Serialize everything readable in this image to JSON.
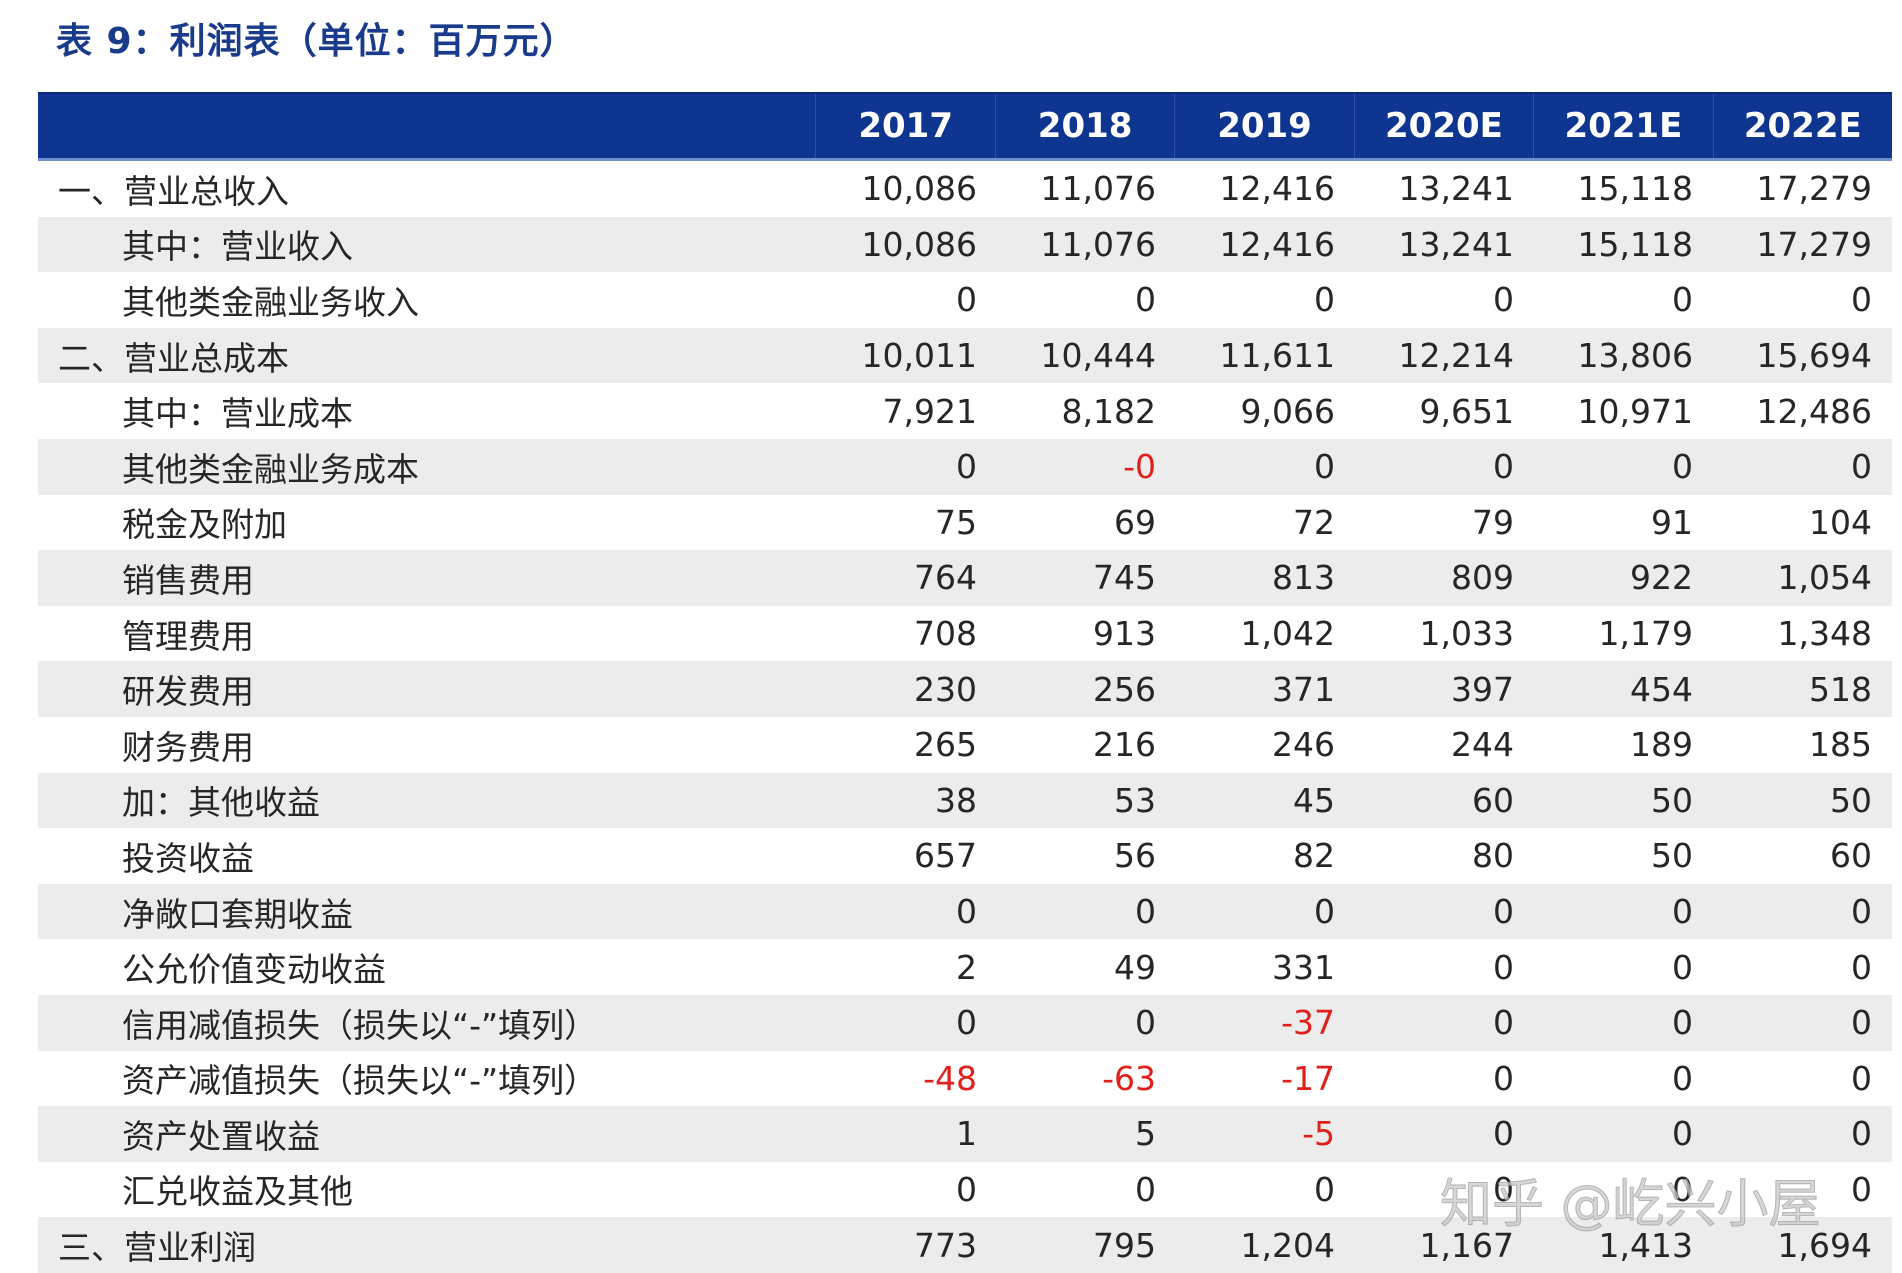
{
  "title": "表 9：利润表（单位：百万元）",
  "header": {
    "years": [
      "2017",
      "2018",
      "2019",
      "2020E",
      "2021E",
      "2022E"
    ]
  },
  "rows": [
    {
      "label": "一、营业总收入",
      "level": 0,
      "values": [
        "10,086",
        "11,076",
        "12,416",
        "13,241",
        "15,118",
        "17,279"
      ]
    },
    {
      "label": "其中：营业收入",
      "level": 1,
      "values": [
        "10,086",
        "11,076",
        "12,416",
        "13,241",
        "15,118",
        "17,279"
      ]
    },
    {
      "label": "其他类金融业务收入",
      "level": 1,
      "values": [
        "0",
        "0",
        "0",
        "0",
        "0",
        "0"
      ]
    },
    {
      "label": "二、营业总成本",
      "level": 0,
      "values": [
        "10,011",
        "10,444",
        "11,611",
        "12,214",
        "13,806",
        "15,694"
      ]
    },
    {
      "label": "其中：营业成本",
      "level": 1,
      "values": [
        "7,921",
        "8,182",
        "9,066",
        "9,651",
        "10,971",
        "12,486"
      ]
    },
    {
      "label": "其他类金融业务成本",
      "level": 1,
      "values": [
        "0",
        "-0",
        "0",
        "0",
        "0",
        "0"
      ]
    },
    {
      "label": "税金及附加",
      "level": 1,
      "values": [
        "75",
        "69",
        "72",
        "79",
        "91",
        "104"
      ]
    },
    {
      "label": "销售费用",
      "level": 1,
      "values": [
        "764",
        "745",
        "813",
        "809",
        "922",
        "1,054"
      ]
    },
    {
      "label": "管理费用",
      "level": 1,
      "values": [
        "708",
        "913",
        "1,042",
        "1,033",
        "1,179",
        "1,348"
      ]
    },
    {
      "label": "研发费用",
      "level": 1,
      "values": [
        "230",
        "256",
        "371",
        "397",
        "454",
        "518"
      ]
    },
    {
      "label": "财务费用",
      "level": 1,
      "values": [
        "265",
        "216",
        "246",
        "244",
        "189",
        "185"
      ]
    },
    {
      "label": "加：其他收益",
      "level": 1,
      "values": [
        "38",
        "53",
        "45",
        "60",
        "50",
        "50"
      ]
    },
    {
      "label": "投资收益",
      "level": 1,
      "values": [
        "657",
        "56",
        "82",
        "80",
        "50",
        "60"
      ]
    },
    {
      "label": "净敞口套期收益",
      "level": 1,
      "values": [
        "0",
        "0",
        "0",
        "0",
        "0",
        "0"
      ]
    },
    {
      "label": "公允价值变动收益",
      "level": 1,
      "values": [
        "2",
        "49",
        "331",
        "0",
        "0",
        "0"
      ]
    },
    {
      "label": "信用减值损失（损失以“-”填列）",
      "level": 1,
      "values": [
        "0",
        "0",
        "-37",
        "0",
        "0",
        "0"
      ]
    },
    {
      "label": "资产减值损失（损失以“-”填列）",
      "level": 1,
      "values": [
        "-48",
        "-63",
        "-17",
        "0",
        "0",
        "0"
      ]
    },
    {
      "label": "资产处置收益",
      "level": 1,
      "values": [
        "1",
        "5",
        "-5",
        "0",
        "0",
        "0"
      ]
    },
    {
      "label": "汇兑收益及其他",
      "level": 1,
      "values": [
        "0",
        "0",
        "0",
        "0",
        "0",
        "0"
      ]
    },
    {
      "label": "三、营业利润",
      "level": 0,
      "values": [
        "773",
        "795",
        "1,204",
        "1,167",
        "1,413",
        "1,694"
      ]
    }
  ],
  "colors": {
    "header_bg": "#0e3590",
    "title": "#1a3a8c",
    "negative": "#e0201b",
    "shaded_row": "#ececec"
  },
  "watermark": "知乎 @屹兴小屋"
}
